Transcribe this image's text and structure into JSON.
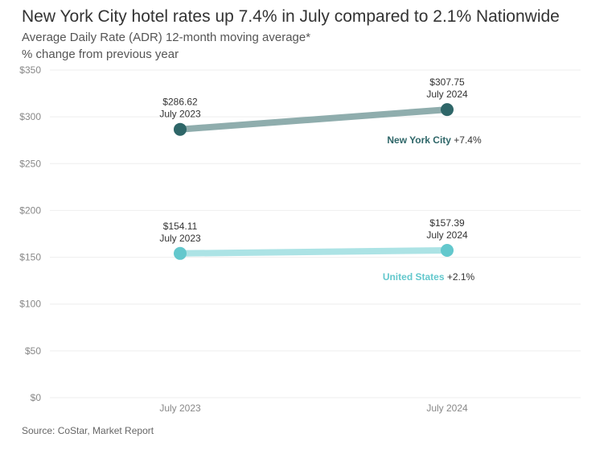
{
  "title": "New York City hotel rates up 7.4% in July compared to 2.1% Nationwide",
  "subtitle_line1": "Average Daily Rate (ADR) 12-month moving average*",
  "subtitle_line2": "% change from previous year",
  "source": "Source: CoStar, Market Report",
  "colors": {
    "nyc_line": "#8fadad",
    "nyc_point": "#2e6668",
    "nyc_label": "#2e6668",
    "us_line": "#ace3e5",
    "us_point": "#63c8cd",
    "us_label": "#63c8cd",
    "grid": "#eeeeee"
  },
  "chart_data": {
    "type": "line",
    "categories": [
      "July 2023",
      "July 2024"
    ],
    "series": [
      {
        "name": "New York City",
        "change": "+7.4%",
        "values": [
          286.62,
          307.75
        ],
        "value_labels": [
          "$286.62",
          "$307.75"
        ]
      },
      {
        "name": "United States",
        "change": "+2.1%",
        "values": [
          154.11,
          157.39
        ],
        "value_labels": [
          "$154.11",
          "$157.39"
        ]
      }
    ],
    "ylim": [
      0,
      350
    ],
    "yticks": [
      0,
      50,
      100,
      150,
      200,
      250,
      300,
      350
    ],
    "ytick_labels": [
      "$0",
      "$50",
      "$100",
      "$150",
      "$200",
      "$250",
      "$300",
      "$350"
    ],
    "grid": true,
    "xlabel": "",
    "ylabel": ""
  }
}
